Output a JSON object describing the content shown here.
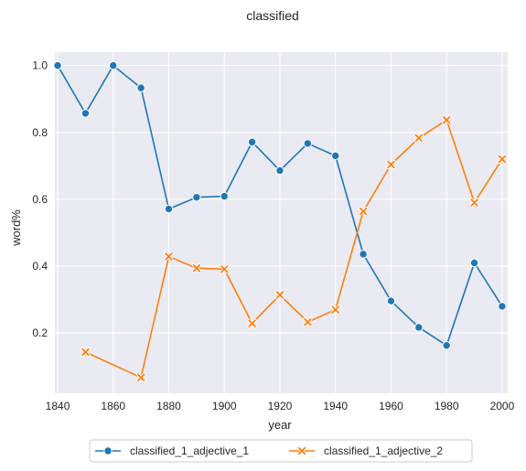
{
  "chart_data": {
    "type": "line",
    "title": "classified",
    "xlabel": "year",
    "ylabel": "word%",
    "xlim": [
      1839,
      2002
    ],
    "ylim": [
      0.02,
      1.04
    ],
    "xticks": [
      1840,
      1860,
      1880,
      1900,
      1920,
      1940,
      1960,
      1980,
      2000
    ],
    "yticks": [
      0.2,
      0.4,
      0.6,
      0.8,
      1.0
    ],
    "ytick_labels": [
      "0.2",
      "0.4",
      "0.6",
      "0.8",
      "1.0"
    ],
    "grid": true,
    "background": "#eaeaf2",
    "legend_position": "bottom-center",
    "series": [
      {
        "name": "classified_1_adjective_1",
        "color": "#1f77b4",
        "marker": "circle",
        "x": [
          1840,
          1850,
          1860,
          1870,
          1880,
          1890,
          1900,
          1910,
          1920,
          1930,
          1940,
          1950,
          1960,
          1970,
          1980,
          1990,
          2000
        ],
        "y": [
          1.0,
          0.857,
          1.0,
          0.933,
          0.571,
          0.606,
          0.609,
          0.771,
          0.686,
          0.767,
          0.73,
          0.436,
          0.296,
          0.217,
          0.163,
          0.41,
          0.28
        ]
      },
      {
        "name": "classified_1_adjective_2",
        "color": "#ff7f0e",
        "marker": "x",
        "x": [
          1850,
          1870,
          1880,
          1890,
          1900,
          1910,
          1920,
          1930,
          1940,
          1950,
          1960,
          1970,
          1980,
          1990,
          2000
        ],
        "y": [
          0.143,
          0.067,
          0.429,
          0.394,
          0.391,
          0.229,
          0.314,
          0.233,
          0.27,
          0.564,
          0.704,
          0.783,
          0.837,
          0.59,
          0.72
        ]
      }
    ]
  }
}
